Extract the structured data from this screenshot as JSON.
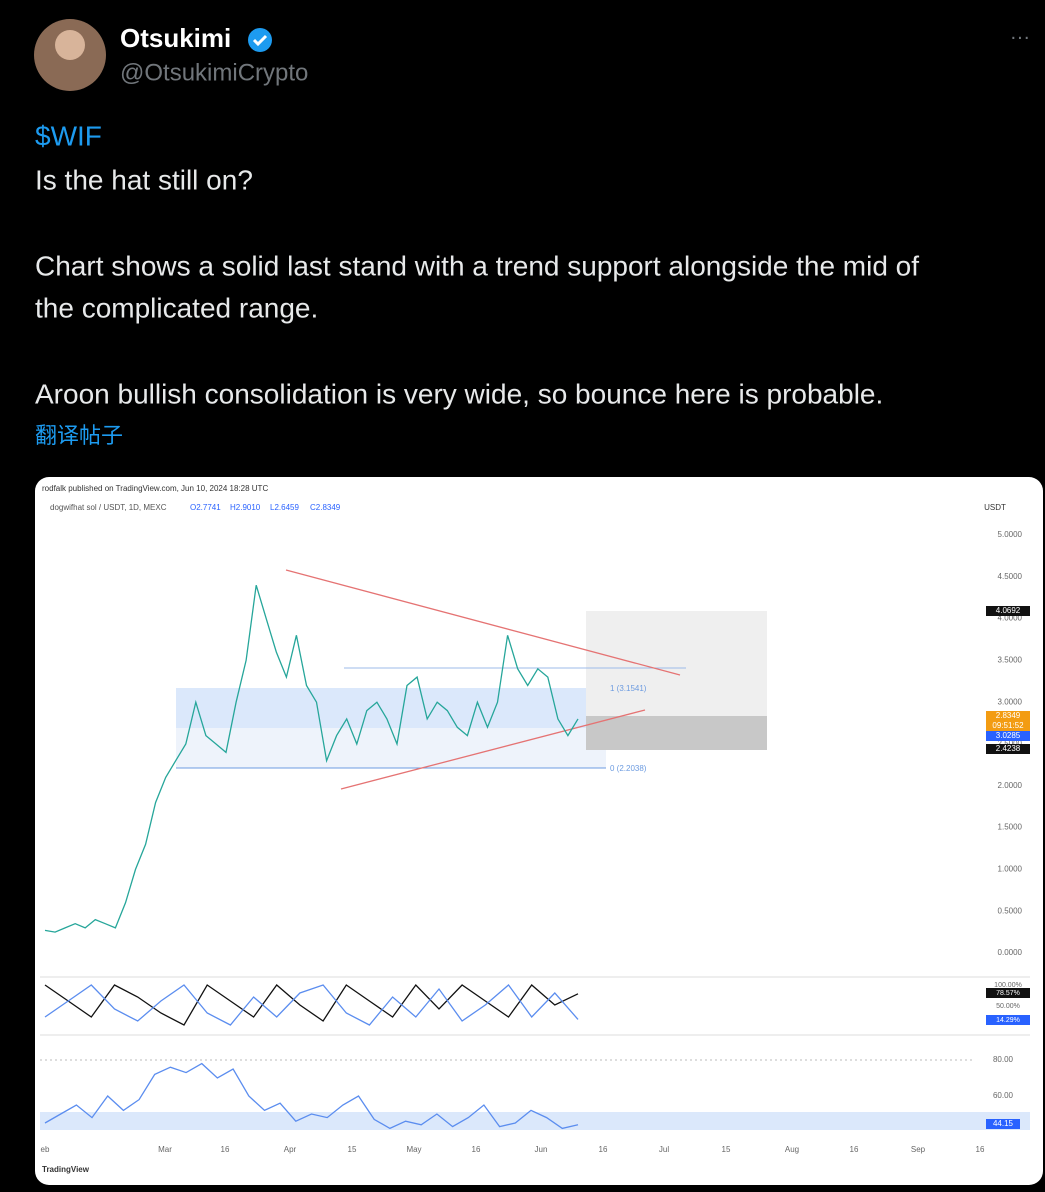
{
  "tweet": {
    "name": "Otsukimi",
    "handle": "@OtsukimiCrypto",
    "more": "···",
    "cashtag": "$WIF",
    "lines": [
      "Is the hat still on?",
      "Chart shows a solid last stand with a trend support alongside the mid of",
      "the complicated range.",
      "Aroon bullish consolidation is very wide, so bounce here is probable."
    ],
    "translate": "翻译帖子"
  },
  "chart": {
    "header": "rodfalk published on TradingView.com, Jun 10, 2024 18:28 UTC",
    "symbol": "dogwifhat sol / USDT, 1D, MEXC",
    "ohlc": [
      "O2.7741",
      "H2.9010",
      "L2.6459",
      "C2.8349"
    ],
    "currency": "USDT",
    "price_labels": [
      "5.0000",
      "4.5000",
      "4.0000",
      "3.5000",
      "3.0000",
      "2.5000",
      "2.0000",
      "1.5000",
      "1.0000",
      "0.5000",
      "0.0000"
    ],
    "price_tags": [
      "4.0692",
      "2.8349",
      "09:51:52",
      "3.0285",
      "2.4238"
    ],
    "fib_labels": [
      "1 (3.1541)",
      "0 (2.2038)"
    ],
    "aroon_labels": [
      "100.00%",
      "78.57%",
      "50.00%",
      "14.29%"
    ],
    "rsi_labels": [
      "80.00",
      "60.00",
      "44.15"
    ],
    "x_labels": [
      "eb",
      "Mar",
      "16",
      "Apr",
      "15",
      "May",
      "16",
      "Jun",
      "16",
      "Jul",
      "15",
      "Aug",
      "16",
      "Sep",
      "16"
    ],
    "brand": "TradingView",
    "price": {
      "values": [
        0.27,
        0.25,
        0.3,
        0.35,
        0.3,
        0.4,
        0.35,
        0.3,
        0.6,
        1.0,
        1.3,
        1.8,
        2.1,
        2.3,
        2.5,
        3.0,
        2.6,
        2.5,
        2.4,
        3.0,
        3.5,
        4.4,
        4.0,
        3.6,
        3.3,
        3.8,
        3.2,
        3.0,
        2.3,
        2.6,
        2.8,
        2.5,
        2.9,
        3.0,
        2.8,
        2.5,
        3.2,
        3.3,
        2.8,
        3.0,
        2.9,
        2.7,
        2.6,
        3.0,
        2.7,
        3.0,
        3.8,
        3.4,
        3.2,
        3.4,
        3.3,
        2.8,
        2.6,
        2.8
      ]
    },
    "aroon_up": {
      "values": [
        100,
        60,
        20,
        100,
        70,
        30,
        0,
        100,
        60,
        20,
        100,
        50,
        10,
        100,
        60,
        20,
        100,
        40,
        100,
        60,
        20,
        100,
        50,
        78
      ]
    },
    "aroon_down": {
      "values": [
        20,
        60,
        100,
        40,
        10,
        60,
        100,
        30,
        0,
        70,
        20,
        80,
        100,
        30,
        0,
        70,
        20,
        90,
        10,
        50,
        100,
        20,
        80,
        14
      ]
    },
    "rsi": {
      "values": [
        45,
        50,
        55,
        48,
        60,
        52,
        58,
        72,
        76,
        73,
        78,
        70,
        75,
        60,
        52,
        56,
        46,
        50,
        48,
        55,
        60,
        47,
        42,
        46,
        44,
        50,
        43,
        48,
        55,
        43,
        45,
        52,
        48,
        42,
        44
      ]
    }
  }
}
